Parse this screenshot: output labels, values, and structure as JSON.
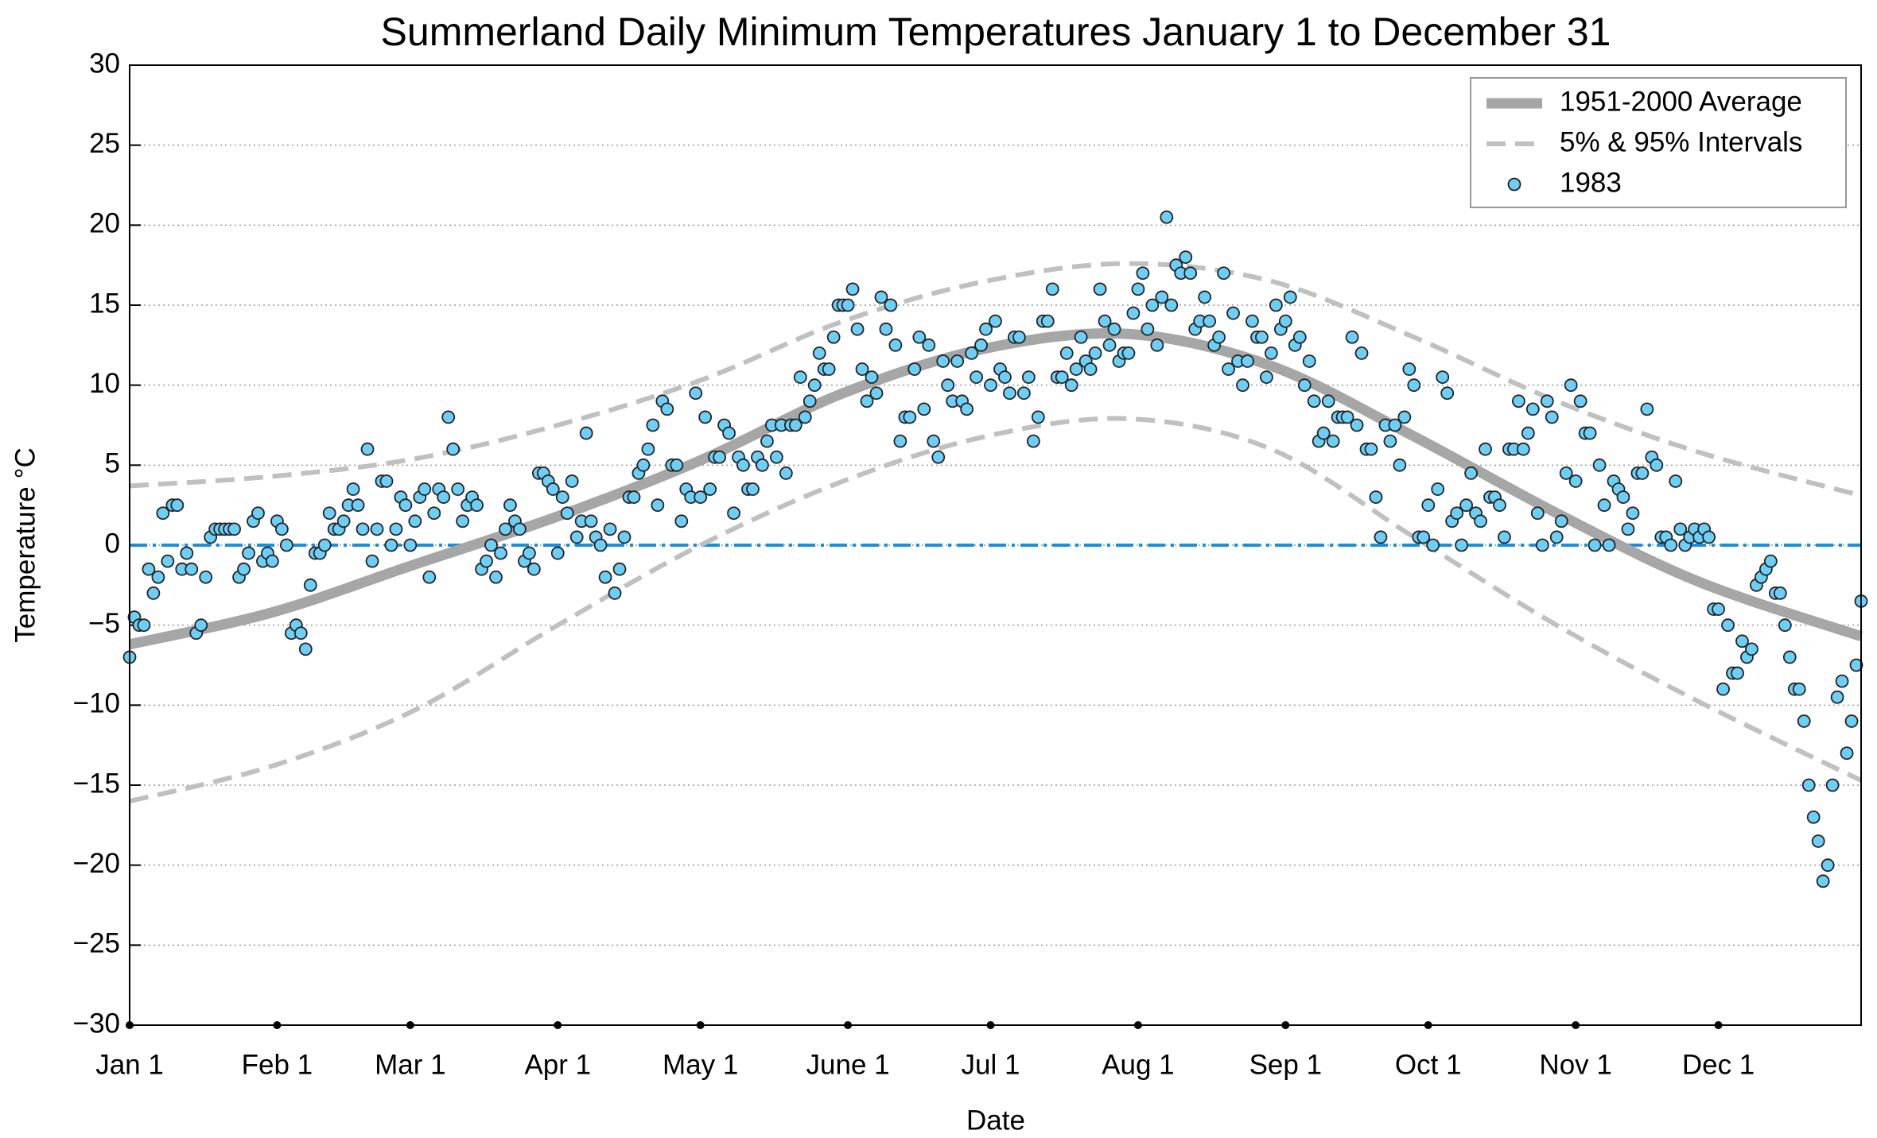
{
  "chart_data": {
    "type": "scatter",
    "title": "Summerland Daily Minimum Temperatures January 1 to December 31",
    "x_label": "Date",
    "y_label": "Temperature °C",
    "xlim": [
      1,
      365
    ],
    "ylim": [
      -30,
      30
    ],
    "xticks": [
      {
        "value": 1,
        "label": "Jan 1"
      },
      {
        "value": 32,
        "label": "Feb 1"
      },
      {
        "value": 60,
        "label": "Mar 1"
      },
      {
        "value": 91,
        "label": "Apr 1"
      },
      {
        "value": 121,
        "label": "May 1"
      },
      {
        "value": 152,
        "label": "June 1"
      },
      {
        "value": 182,
        "label": "Jul 1"
      },
      {
        "value": 213,
        "label": "Aug 1"
      },
      {
        "value": 244,
        "label": "Sep 1"
      },
      {
        "value": 274,
        "label": "Oct 1"
      },
      {
        "value": 305,
        "label": "Nov 1"
      },
      {
        "value": 335,
        "label": "Dec 1"
      }
    ],
    "yticks": [
      {
        "value": -30,
        "label": "−30"
      },
      {
        "value": -25,
        "label": "−25"
      },
      {
        "value": -20,
        "label": "−20"
      },
      {
        "value": -15,
        "label": "−15"
      },
      {
        "value": -10,
        "label": "−10"
      },
      {
        "value": -5,
        "label": "−5"
      },
      0,
      5,
      10,
      15,
      20,
      25,
      30
    ],
    "grid": true,
    "legend": "upper right",
    "reference_line": {
      "value": 0,
      "color": "#1a8fe0"
    },
    "series": [
      {
        "name": "1951-2000 Average",
        "type": "line",
        "color": "#a6a6a6",
        "x": [
          1,
          31,
          61,
          91,
          121,
          151,
          181,
          211,
          241,
          271,
          301,
          331,
          365
        ],
        "values": [
          -6.2,
          -4.2,
          -1.2,
          1.8,
          5.3,
          9.5,
          12.3,
          13.2,
          11.2,
          6.8,
          2.0,
          -2.3,
          -5.7
        ]
      },
      {
        "name": "5% & 95% Intervals",
        "type": "interval",
        "color": "#c0c0c0",
        "x": [
          1,
          31,
          61,
          91,
          121,
          151,
          181,
          211,
          241,
          271,
          301,
          331,
          365
        ],
        "lower": [
          -16,
          -13.8,
          -10.3,
          -5,
          0,
          4,
          6.8,
          7.9,
          6.0,
          0.5,
          -5,
          -9.8,
          -14.7
        ],
        "upper": [
          3.7,
          4.3,
          5.4,
          7.5,
          10.3,
          14.0,
          16.5,
          17.6,
          16.5,
          13.0,
          9.0,
          5.8,
          3.1
        ]
      },
      {
        "name": "1983",
        "type": "scatter",
        "color": "#6ecff6",
        "x": [
          1,
          2,
          3,
          4,
          5,
          6,
          7,
          8,
          9,
          10,
          11,
          12,
          13,
          14,
          15,
          16,
          17,
          18,
          19,
          20,
          21,
          22,
          23,
          24,
          25,
          26,
          27,
          28,
          29,
          30,
          31,
          32,
          33,
          34,
          35,
          36,
          37,
          38,
          39,
          40,
          41,
          42,
          43,
          44,
          45,
          46,
          47,
          48,
          49,
          50,
          51,
          52,
          53,
          54,
          55,
          56,
          57,
          58,
          59,
          60,
          61,
          62,
          63,
          64,
          65,
          66,
          67,
          68,
          69,
          70,
          71,
          72,
          73,
          74,
          75,
          76,
          77,
          78,
          79,
          80,
          81,
          82,
          83,
          84,
          85,
          86,
          87,
          88,
          89,
          90,
          91,
          92,
          93,
          94,
          95,
          96,
          97,
          98,
          99,
          100,
          101,
          102,
          103,
          104,
          105,
          106,
          107,
          108,
          109,
          110,
          111,
          112,
          113,
          114,
          115,
          116,
          117,
          118,
          119,
          120,
          121,
          122,
          123,
          124,
          125,
          126,
          127,
          128,
          129,
          130,
          131,
          132,
          133,
          134,
          135,
          136,
          137,
          138,
          139,
          140,
          141,
          142,
          143,
          144,
          145,
          146,
          147,
          148,
          149,
          150,
          151,
          152,
          153,
          154,
          155,
          156,
          157,
          158,
          159,
          160,
          161,
          162,
          163,
          164,
          165,
          166,
          167,
          168,
          169,
          170,
          171,
          172,
          173,
          174,
          175,
          176,
          177,
          178,
          179,
          180,
          181,
          182,
          183,
          184,
          185,
          186,
          187,
          188,
          189,
          190,
          191,
          192,
          193,
          194,
          195,
          196,
          197,
          198,
          199,
          200,
          201,
          202,
          203,
          204,
          205,
          206,
          207,
          208,
          209,
          210,
          211,
          212,
          213,
          214,
          215,
          216,
          217,
          218,
          219,
          220,
          221,
          222,
          223,
          224,
          225,
          226,
          227,
          228,
          229,
          230,
          231,
          232,
          233,
          234,
          235,
          236,
          237,
          238,
          239,
          240,
          241,
          242,
          243,
          244,
          245,
          246,
          247,
          248,
          249,
          250,
          251,
          252,
          253,
          254,
          255,
          256,
          257,
          258,
          259,
          260,
          261,
          262,
          263,
          264,
          265,
          266,
          267,
          268,
          269,
          270,
          271,
          272,
          273,
          274,
          275,
          276,
          277,
          278,
          279,
          280,
          281,
          282,
          283,
          284,
          285,
          286,
          287,
          288,
          289,
          290,
          291,
          292,
          293,
          294,
          295,
          296,
          297,
          298,
          299,
          300,
          301,
          302,
          303,
          304,
          305,
          306,
          307,
          308,
          309,
          310,
          311,
          312,
          313,
          314,
          315,
          316,
          317,
          318,
          319,
          320,
          321,
          322,
          323,
          324,
          325,
          326,
          327,
          328,
          329,
          330,
          331,
          332,
          333,
          334,
          335,
          336,
          337,
          338,
          339,
          340,
          341,
          342,
          343,
          344,
          345,
          346,
          347,
          348,
          349,
          350,
          351,
          352,
          353,
          354,
          355,
          356,
          357,
          358,
          359,
          360,
          361,
          362,
          363,
          364,
          365
        ],
        "values": [
          -7,
          -4.5,
          -5,
          -5,
          -1.5,
          -3,
          -2,
          2,
          -1,
          2.5,
          2.5,
          -1.5,
          -0.5,
          -1.5,
          -5.5,
          -5,
          -2,
          0.5,
          1,
          1,
          1,
          1,
          1,
          -2,
          -1.5,
          -0.5,
          1.5,
          2,
          -1,
          -0.5,
          -1,
          1.5,
          1,
          0,
          -5.5,
          -5,
          -5.5,
          -6.5,
          -2.5,
          -0.5,
          -0.5,
          0,
          2,
          1,
          1,
          1.5,
          2.5,
          3.5,
          2.5,
          1,
          6,
          -1,
          1,
          4,
          4,
          0,
          1,
          3,
          2.5,
          0,
          1.5,
          3,
          3.5,
          -2,
          2,
          3.5,
          3,
          8,
          6,
          3.5,
          1.5,
          2.5,
          3,
          2.5,
          -1.5,
          -1,
          0,
          -2,
          -0.5,
          1,
          2.5,
          1.5,
          1,
          -1,
          -0.5,
          -1.5,
          4.5,
          4.5,
          4,
          3.5,
          -0.5,
          3,
          2,
          4,
          0.5,
          1.5,
          7,
          1.5,
          0.5,
          0,
          -2,
          1,
          -3,
          -1.5,
          0.5,
          3,
          3,
          4.5,
          5,
          6,
          7.5,
          2.5,
          9,
          8.5,
          5,
          5,
          1.5,
          3.5,
          3,
          9.5,
          3,
          8,
          3.5,
          5.5,
          5.5,
          7.5,
          7,
          2,
          5.5,
          5,
          3.5,
          3.5,
          5.5,
          5,
          6.5,
          7.5,
          5.5,
          7.5,
          4.5,
          7.5,
          7.5,
          10.5,
          8,
          9,
          10,
          12,
          11,
          11,
          13,
          15,
          15,
          15,
          16,
          13.5,
          11,
          9,
          10.5,
          9.5,
          15.5,
          13.5,
          15,
          12.5,
          6.5,
          8,
          8,
          11,
          13,
          8.5,
          12.5,
          6.5,
          5.5,
          11.5,
          10,
          9,
          11.5,
          9,
          8.5,
          12,
          10.5,
          12.5,
          13.5,
          10,
          14,
          11,
          10.5,
          9.5,
          13,
          13,
          9.5,
          10.5,
          6.5,
          8,
          14,
          14,
          16,
          10.5,
          10.5,
          12,
          10,
          11,
          13,
          11.5,
          11,
          12,
          16,
          14,
          12.5,
          13.5,
          11.5,
          12,
          12,
          14.5,
          16,
          17,
          13.5,
          15,
          12.5,
          15.5,
          20.5,
          15,
          17.5,
          17,
          18,
          17,
          13.5,
          14,
          15.5,
          14,
          12.5,
          13,
          17,
          11,
          14.5,
          11.5,
          10,
          11.5,
          14,
          13,
          13,
          10.5,
          12,
          15,
          13.5,
          14,
          15.5,
          12.5,
          13,
          10,
          11.5,
          9,
          6.5,
          7,
          9,
          6.5,
          8,
          8,
          8,
          13,
          7.5,
          12,
          6,
          6,
          3,
          0.5,
          7.5,
          6.5,
          7.5,
          5,
          8,
          11,
          10,
          0.5,
          0.5,
          2.5,
          0,
          3.5,
          10.5,
          9.5,
          1.5,
          2,
          0,
          2.5,
          4.5,
          2,
          1.5,
          6,
          3,
          3,
          2.5,
          0.5,
          6,
          6,
          9,
          6,
          7,
          8.5,
          2,
          0,
          9,
          8,
          0.5,
          1.5,
          4.5,
          10,
          4,
          9,
          7,
          7,
          0,
          5,
          2.5,
          0,
          4,
          3.5,
          3,
          1,
          2,
          4.5,
          4.5,
          8.5,
          5.5,
          5,
          0.5,
          0.5,
          0,
          4,
          1,
          0,
          0.5,
          1,
          0.5,
          1,
          0.5,
          -4,
          -4,
          -9,
          -5,
          -8,
          -8,
          -6,
          -7,
          -6.5,
          -2.5,
          -2,
          -1.5,
          -1,
          -3,
          -3,
          -5,
          -7,
          -9,
          -9,
          -11,
          -15,
          -17,
          -18.5,
          -21,
          -20,
          -15,
          -9.5,
          -8.5,
          -13,
          -11,
          -7.5,
          -3.5
        ]
      }
    ]
  }
}
